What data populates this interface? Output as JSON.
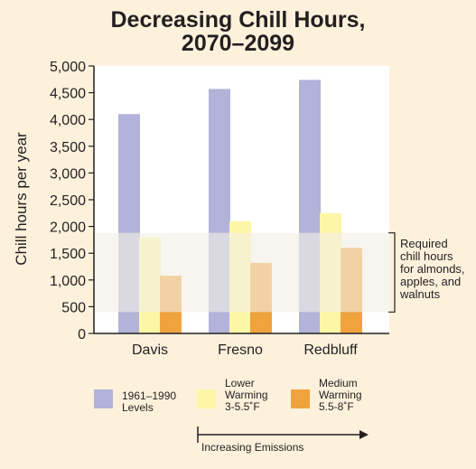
{
  "chart_data": {
    "type": "bar",
    "title": [
      "Decreasing Chill Hours,",
      "2070–2099"
    ],
    "ylabel": "Chill hours per year",
    "xlabel": "",
    "ylim": [
      0,
      5000
    ],
    "yticks": [
      "0",
      "500",
      "1,000",
      "1,500",
      "2,000",
      "2,500",
      "3,000",
      "3,500",
      "4,000",
      "4,500",
      "5,000"
    ],
    "ytick_values": [
      0,
      500,
      1000,
      1500,
      2000,
      2500,
      3000,
      3500,
      4000,
      4500,
      5000
    ],
    "categories": [
      "Davis",
      "Fresno",
      "Redbluff"
    ],
    "series": [
      {
        "name": "1961–1990 Levels",
        "values": [
          4100,
          4570,
          4740
        ],
        "color": "#b3b2d8"
      },
      {
        "name": "Lower Warming 3-5.5˚F",
        "values": [
          1790,
          2100,
          2250
        ],
        "color": "#fdf6a6"
      },
      {
        "name": "Medium Warming 5.5-8˚F",
        "values": [
          1080,
          1320,
          1600
        ],
        "color": "#f0a33c"
      }
    ],
    "band": {
      "range": [
        400,
        1880
      ],
      "label": "Required\nchill hours\nfor almonds,\napples, and\nwalnuts"
    },
    "grid": false
  },
  "legend": {
    "items": [
      {
        "text": "1961–1990\nLevels",
        "color": "#b3b2d8"
      },
      {
        "text": "Lower\nWarming\n3-5.5˚F",
        "color": "#fdf6a6"
      },
      {
        "text": "Medium\nWarming\n5.5-8˚F",
        "color": "#f0a33c"
      }
    ]
  },
  "emissions": {
    "label": "Increasing Emissions"
  },
  "colors": {
    "plot_bg": "#ffffff",
    "page_bg": "#fdf1dc",
    "band": "#f2efe6",
    "axis": "#231f20"
  }
}
